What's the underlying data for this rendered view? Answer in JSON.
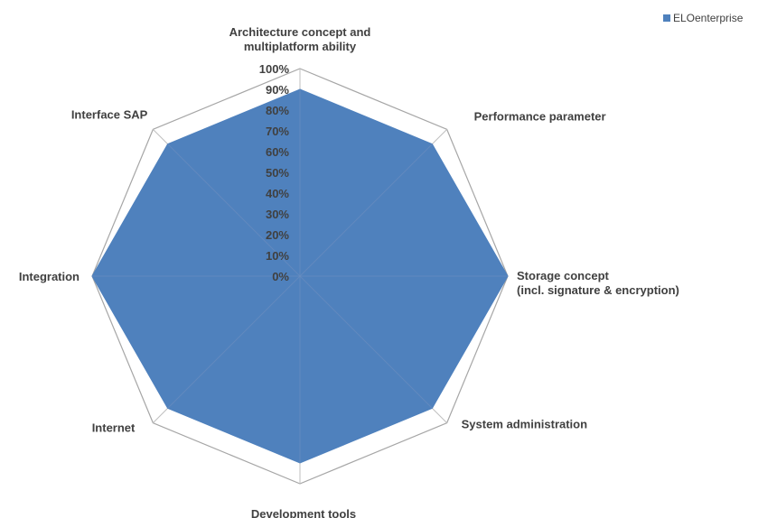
{
  "chart_data": {
    "type": "radar",
    "title": "",
    "categories": [
      [
        "Architecture concept and",
        "multiplatform ability"
      ],
      [
        "Performance parameter"
      ],
      [
        "Storage concept",
        "(incl. signature & encryption)"
      ],
      [
        "System administration"
      ],
      [
        "Development tools"
      ],
      [
        "Internet"
      ],
      [
        "Integration"
      ],
      [
        "Interface SAP"
      ]
    ],
    "series": [
      {
        "name": "ELOenterprise",
        "values": [
          0.9,
          0.9,
          1.0,
          0.9,
          0.9,
          0.9,
          1.0,
          0.9
        ],
        "color": "#4f81bd"
      }
    ],
    "r_ticks": [
      "0%",
      "10%",
      "20%",
      "30%",
      "40%",
      "50%",
      "60%",
      "70%",
      "80%",
      "90%",
      "100%"
    ],
    "r_range": [
      0,
      1
    ],
    "legend_position": "top-right",
    "grid": "outer-ring-and-axes"
  }
}
